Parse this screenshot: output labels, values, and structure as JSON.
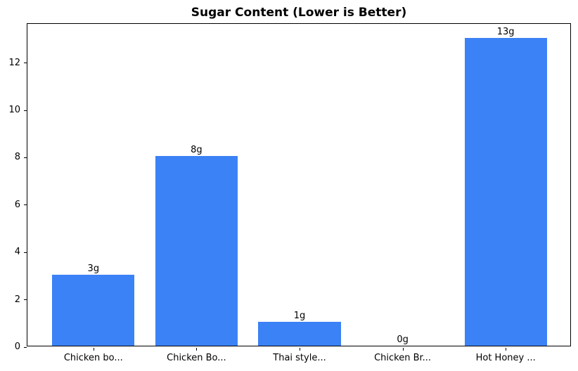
{
  "chart_data": {
    "type": "bar",
    "title": "Sugar Content (Lower is Better)",
    "categories": [
      "Chicken bo...",
      "Chicken Bo...",
      "Thai style...",
      "Chicken Br...",
      "Hot Honey ..."
    ],
    "values": [
      3,
      8,
      1,
      0,
      13
    ],
    "bar_labels": [
      "3g",
      "8g",
      "1g",
      "0g",
      "13g"
    ],
    "bar_color": "#3b82f6",
    "xlabel": "",
    "ylabel": "",
    "ylim": [
      0,
      13.65
    ],
    "yticks": [
      0,
      2,
      4,
      6,
      8,
      10,
      12
    ],
    "grid": false,
    "legend": false,
    "bar_width_fraction": 0.8
  }
}
